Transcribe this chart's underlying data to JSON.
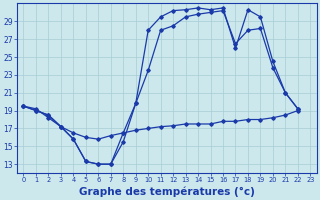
{
  "bg_color": "#cce8ec",
  "line_color": "#1a3aaa",
  "grid_color": "#a8cdd4",
  "xlabel": "Graphe des températures (°c)",
  "xlabel_fontsize": 7.5,
  "yticks": [
    13,
    15,
    17,
    19,
    21,
    23,
    25,
    27,
    29
  ],
  "xticks": [
    0,
    1,
    2,
    3,
    4,
    5,
    6,
    7,
    8,
    9,
    10,
    11,
    12,
    13,
    14,
    15,
    16,
    17,
    18,
    19,
    20,
    21,
    22,
    23
  ],
  "xlim": [
    -0.5,
    23.5
  ],
  "ylim": [
    12.0,
    31.0
  ],
  "series1": [
    [
      0,
      19.5
    ],
    [
      1,
      19.0
    ],
    [
      2,
      18.5
    ],
    [
      3,
      17.2
    ],
    [
      4,
      15.8
    ],
    [
      5,
      13.3
    ],
    [
      6,
      13.0
    ],
    [
      7,
      13.0
    ],
    [
      8,
      15.5
    ],
    [
      9,
      19.8
    ],
    [
      10,
      28.0
    ],
    [
      11,
      29.5
    ],
    [
      12,
      30.2
    ],
    [
      13,
      30.3
    ],
    [
      14,
      30.5
    ],
    [
      15,
      30.3
    ],
    [
      16,
      30.5
    ],
    [
      17,
      26.0
    ],
    [
      18,
      30.3
    ],
    [
      19,
      29.5
    ],
    [
      20,
      24.5
    ],
    [
      21,
      21.0
    ],
    [
      22,
      19.2
    ]
  ],
  "series2": [
    [
      0,
      19.5
    ],
    [
      1,
      19.0
    ],
    [
      2,
      18.5
    ],
    [
      3,
      17.2
    ],
    [
      4,
      15.8
    ],
    [
      5,
      13.3
    ],
    [
      6,
      13.0
    ],
    [
      7,
      13.0
    ],
    [
      8,
      16.5
    ],
    [
      9,
      19.8
    ],
    [
      10,
      23.5
    ],
    [
      11,
      28.0
    ],
    [
      12,
      28.5
    ],
    [
      13,
      29.5
    ],
    [
      14,
      29.8
    ],
    [
      15,
      30.0
    ],
    [
      16,
      30.2
    ],
    [
      17,
      26.5
    ],
    [
      18,
      28.0
    ],
    [
      19,
      28.2
    ],
    [
      20,
      23.8
    ],
    [
      21,
      21.0
    ],
    [
      22,
      19.2
    ]
  ],
  "series3": [
    [
      0,
      19.5
    ],
    [
      1,
      19.2
    ],
    [
      2,
      18.2
    ],
    [
      3,
      17.2
    ],
    [
      4,
      16.5
    ],
    [
      5,
      16.0
    ],
    [
      6,
      15.8
    ],
    [
      7,
      16.2
    ],
    [
      8,
      16.5
    ],
    [
      9,
      16.8
    ],
    [
      10,
      17.0
    ],
    [
      11,
      17.2
    ],
    [
      12,
      17.3
    ],
    [
      13,
      17.5
    ],
    [
      14,
      17.5
    ],
    [
      15,
      17.5
    ],
    [
      16,
      17.8
    ],
    [
      17,
      17.8
    ],
    [
      18,
      18.0
    ],
    [
      19,
      18.0
    ],
    [
      20,
      18.2
    ],
    [
      21,
      18.5
    ],
    [
      22,
      19.0
    ]
  ]
}
